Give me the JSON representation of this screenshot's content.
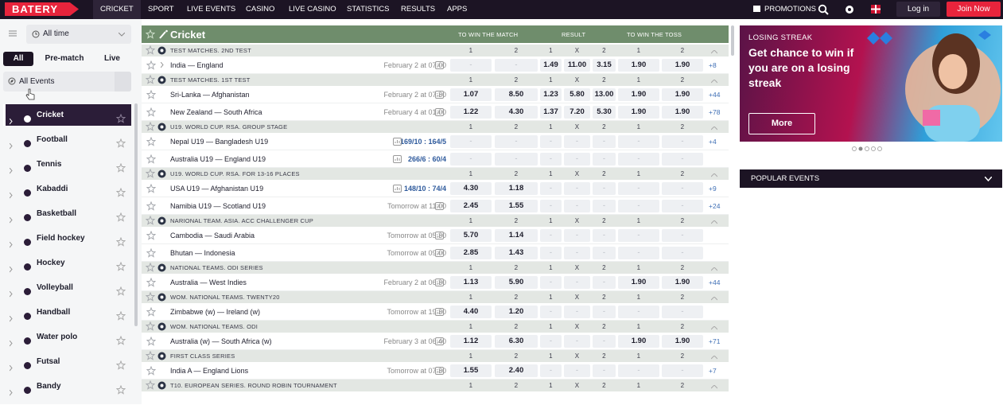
{
  "nav": {
    "logo": "BATERY",
    "items": [
      "CRICKET",
      "SPORT",
      "LIVE EVENTS",
      "CASINO",
      "LIVE CASINO",
      "STATISTICS",
      "RESULTS",
      "APPS"
    ],
    "promotions": "PROMOTIONS",
    "login": "Log in",
    "join": "Join Now"
  },
  "sidebar": {
    "period": "All time",
    "tabs": [
      "All",
      "Pre-match",
      "Live"
    ],
    "filter": "All Events",
    "sports": [
      "Cricket",
      "Football",
      "Tennis",
      "Kabaddi",
      "Basketball",
      "Field hockey",
      "Hockey",
      "Volleyball",
      "Handball",
      "Water polo",
      "Futsal",
      "Bandy"
    ]
  },
  "main": {
    "title": "Cricket",
    "markets": [
      "TO WIN THE MATCH",
      "RESULT",
      "TO WIN THE TOSS"
    ],
    "odds_headers": [
      "1",
      "2",
      "1",
      "X",
      "2",
      "1",
      "2"
    ],
    "leagues": [
      {
        "name": "TEST MATCHES. 2ND TEST",
        "matches": [
          {
            "teams": "India — England",
            "time": "February 2 at 07:00",
            "odds": [
              "-",
              "-",
              "1.49",
              "11.00",
              "3.15",
              "1.90",
              "1.90"
            ],
            "more": "+8"
          }
        ]
      },
      {
        "name": "TEST MATCHES. 1ST TEST",
        "matches": [
          {
            "teams": "Sri-Lanka — Afghanistan",
            "time": "February 2 at 07:30",
            "odds": [
              "1.07",
              "8.50",
              "1.23",
              "5.80",
              "13.00",
              "1.90",
              "1.90"
            ],
            "more": "+44"
          },
          {
            "teams": "New Zealand — South Africa",
            "time": "February 4 at 01:00",
            "odds": [
              "1.22",
              "4.30",
              "1.37",
              "7.20",
              "5.30",
              "1.90",
              "1.90"
            ],
            "more": "+78"
          }
        ]
      },
      {
        "name": "U19. WORLD CUP. RSA. GROUP STAGE",
        "matches": [
          {
            "teams": "Nepal U19 — Bangladesh U19",
            "score": "169/10 : 164/5",
            "odds": [
              "-",
              "-",
              "-",
              "-",
              "-",
              "-",
              "-"
            ],
            "more": "+4"
          },
          {
            "teams": "Australia U19 — England U19",
            "score": "266/6 : 60/4",
            "odds": [
              "-",
              "-",
              "-",
              "-",
              "-",
              "-",
              "-"
            ]
          }
        ]
      },
      {
        "name": "U19. WORLD CUP. RSA. FOR 13-16 PLACES",
        "matches": [
          {
            "teams": "USA U19 — Afghanistan U19",
            "score": "148/10 : 74/4",
            "odds": [
              "4.30",
              "1.18",
              "-",
              "-",
              "-",
              "-",
              "-"
            ],
            "more": "+9"
          },
          {
            "teams": "Namibia U19 — Scotland U19",
            "time": "Tomorrow at 11:00",
            "odds": [
              "2.45",
              "1.55",
              "-",
              "-",
              "-",
              "-",
              "-"
            ],
            "more": "+24"
          }
        ]
      },
      {
        "name": "NARIONAL TEAM. ASIA. ACC CHALLENGER CUP",
        "matches": [
          {
            "teams": "Cambodia — Saudi Arabia",
            "time": "Tomorrow at 05:30",
            "odds": [
              "5.70",
              "1.14",
              "-",
              "-",
              "-",
              "-",
              "-"
            ]
          },
          {
            "teams": "Bhutan — Indonesia",
            "time": "Tomorrow at 09:00",
            "odds": [
              "2.85",
              "1.43",
              "-",
              "-",
              "-",
              "-",
              "-"
            ]
          }
        ]
      },
      {
        "name": "NATIONAL TEAMS. ODI SERIES",
        "matches": [
          {
            "teams": "Australia — West Indies",
            "time": "February 2 at 06:30",
            "odds": [
              "1.13",
              "5.90",
              "-",
              "-",
              "-",
              "1.90",
              "1.90"
            ],
            "more": "+44"
          }
        ]
      },
      {
        "name": "WOM. NATIONAL TEAMS. TWENTY20",
        "matches": [
          {
            "teams": "Zimbabwe (w) — Ireland (w)",
            "time": "Tomorrow at 19:30",
            "odds": [
              "4.40",
              "1.20",
              "-",
              "-",
              "-",
              "-",
              "-"
            ]
          }
        ]
      },
      {
        "name": "WOM. NATIONAL TEAMS. ODI",
        "matches": [
          {
            "teams": "Australia (w) — South Africa (w)",
            "time": "February 3 at 06:40",
            "odds": [
              "1.12",
              "6.30",
              "-",
              "-",
              "-",
              "1.90",
              "1.90"
            ],
            "more": "+71"
          }
        ]
      },
      {
        "name": "FIRST CLASS SERIES",
        "matches": [
          {
            "teams": "India A — England Lions",
            "time": "Tomorrow at 07:30",
            "odds": [
              "1.55",
              "2.40",
              "-",
              "-",
              "-",
              "-",
              "-"
            ],
            "more": "+7"
          }
        ]
      },
      {
        "name": "T10. EUROPEAN SERIES. ROUND ROBIN TOURNAMENT",
        "matches": []
      }
    ]
  },
  "promo": {
    "kicker": "LOSING STREAK",
    "headline": "Get chance to win if you are on a losing streak",
    "button": "More"
  },
  "popular": "POPULAR EVENTS"
}
